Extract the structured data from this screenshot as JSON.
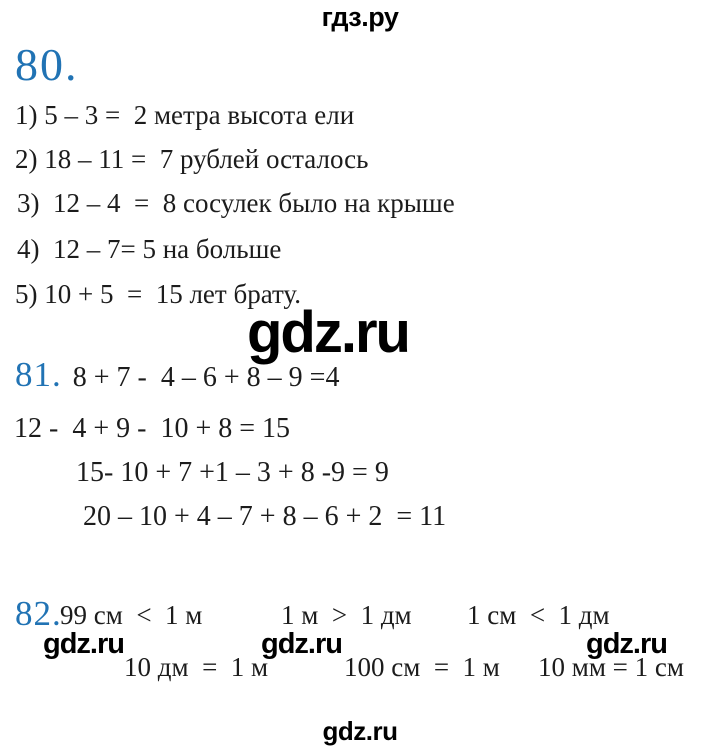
{
  "page": {
    "site_header": "гдз.ру",
    "watermark_large": "gdz.ru",
    "watermark_small": "gdz.ru",
    "accent_blue": "#2173b4",
    "text_color": "#1c1c1c",
    "background": "#ffffff"
  },
  "problem80": {
    "number": "80.",
    "lines": [
      "1) 5 – 3 =  2 метра высота ели",
      "2) 18 – 11 =  7 рублей осталось",
      "3)  12 – 4  =  8 сосулек было на крыше",
      "4)  12 – 7= 5 на больше",
      "5) 10 + 5  =  15 лет брату."
    ]
  },
  "problem81": {
    "number": "81.",
    "first_line": "8 + 7 -  4 – 6 + 8 – 9 =4",
    "lines": [
      "12 -  4 + 9 -  10 + 8 = 15",
      "15- 10 + 7 +1 – 3 + 8 -9 = 9",
      "20 – 10 + 4 – 7 + 8 – 6 + 2  = 11"
    ]
  },
  "problem82": {
    "number": "82.",
    "row1": [
      "99 см  <  1 м",
      "1 м  >  1 дм",
      "1 см  <  1 дм"
    ],
    "row2": [
      "10 дм  =  1 м",
      "100 см  =  1 м",
      "10 мм = 1 см"
    ]
  }
}
